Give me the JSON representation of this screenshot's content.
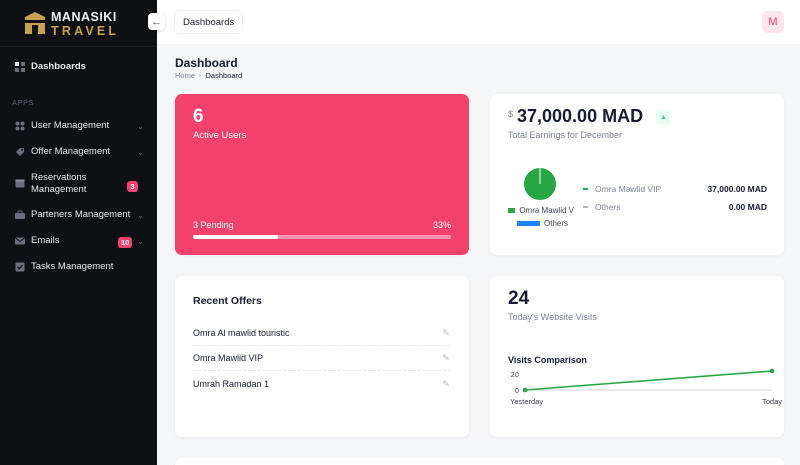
{
  "brand": {
    "line1": "MANASIKI",
    "line2": "TRAVEL",
    "gold": "#c9a04c"
  },
  "sidebar": {
    "toggle_icon": "arrow-left-icon",
    "active": {
      "label": "Dashboards"
    },
    "section_label": "APPS",
    "items": [
      {
        "label": "User Management",
        "icon": "users-icon",
        "has_chevron": true
      },
      {
        "label": "Offer Management",
        "icon": "offer-icon",
        "has_chevron": true
      },
      {
        "label": "Reservations Management",
        "icon": "calendar-icon",
        "badge": "3"
      },
      {
        "label": "Parteners Management",
        "icon": "partners-icon",
        "has_chevron": true
      },
      {
        "label": "Emails",
        "icon": "mail-icon",
        "badge": "10",
        "has_chevron": true
      },
      {
        "label": "Tasks Management",
        "icon": "tasks-icon"
      }
    ]
  },
  "header": {
    "tab": "Dashboards",
    "avatar": "M"
  },
  "page": {
    "title": "Dashboard",
    "breadcrumb": [
      "Home",
      "-",
      "Dashboard"
    ]
  },
  "users_card": {
    "count": "6",
    "label": "Active Users",
    "pending": "3 Pending",
    "percent_text": "33%",
    "percent": 33,
    "color": "#f1416c"
  },
  "earnings_card": {
    "currency": "$",
    "amount": "37,000.00 MAD",
    "label": "Total Earnings for December",
    "legend": [
      {
        "label": "Omra Mawlid V",
        "color": "#27a844"
      },
      {
        "label": "Others",
        "color": "#1b84ff"
      }
    ],
    "rows": [
      {
        "name": "Omra Mawlid VIP",
        "value": "37,000.00 MAD",
        "color": "#27a844"
      },
      {
        "name": "Others",
        "value": "0.00 MAD",
        "color": "#b5b5c3"
      }
    ]
  },
  "offers_card": {
    "title": "Recent Offers",
    "offers": [
      "Omra Al mawlid touristic",
      "Omra Mawlid VIP",
      "Umrah Ramadan 1"
    ]
  },
  "visits_card": {
    "count": "24",
    "label": "Today's Website Visits",
    "chart_title": "Visits Comparison"
  },
  "chart_data": [
    {
      "type": "pie",
      "categories": [
        "Omra Mawlid VIP",
        "Others"
      ],
      "values": [
        37000,
        0
      ],
      "colors": [
        "#27a844",
        "#1b84ff"
      ],
      "legend": "bottom"
    },
    {
      "type": "line",
      "title": "Visits Comparison",
      "categories": [
        "Yesterday",
        "Today"
      ],
      "series": [
        {
          "values": [
            0,
            24
          ],
          "color": "#27a844"
        }
      ],
      "yticks": [
        "0",
        "20"
      ],
      "ylim": [
        0,
        24
      ]
    }
  ]
}
